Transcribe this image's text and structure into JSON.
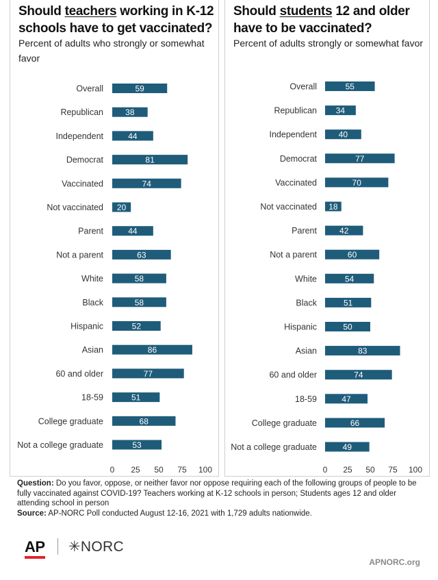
{
  "left": {
    "title_pre": "Should ",
    "title_u": "teachers",
    "title_post": " working in K-12",
    "title_line2": "schools have to get vaccinated?",
    "subtitle": "Percent of adults who strongly or somewhat favor"
  },
  "right": {
    "title_pre": "Should ",
    "title_u": "students",
    "title_post": " 12 and older",
    "title_line2": "have to be vaccinated?",
    "subtitle": "Percent of adults strongly or somewhat favor"
  },
  "footer": {
    "question_label": "Question:",
    "question_text": " Do you favor, oppose, or neither favor nor oppose requiring each of the following groups of people to be fully vaccinated against COVID-19? Teachers working at K-12 schools in person; Students ages 12 and older attending school in person",
    "source_label": "Source:",
    "source_text": " AP-NORC Poll conducted August 12-16, 2021 with 1,729 adults nationwide."
  },
  "logos": {
    "ap": "AP",
    "norc": "✳NORC",
    "site": "APNORC.org"
  },
  "colors": {
    "bar": "#1f5c7a",
    "bar_label": "#ffffff",
    "border": "#cfcfcf"
  },
  "chart_data": [
    {
      "type": "bar",
      "orientation": "horizontal",
      "categories": [
        "Overall",
        "Republican",
        "Independent",
        "Democrat",
        "Vaccinated",
        "Not vaccinated",
        "Parent",
        "Not a parent",
        "White",
        "Black",
        "Hispanic",
        "Asian",
        "60 and older",
        "18-59",
        "College graduate",
        "Not a college graduate"
      ],
      "values": [
        59,
        38,
        44,
        81,
        74,
        20,
        44,
        63,
        58,
        58,
        52,
        86,
        77,
        51,
        68,
        53
      ],
      "xlim": [
        0,
        100
      ],
      "xticks": [
        0,
        25,
        50,
        75,
        100
      ],
      "grid": false
    },
    {
      "type": "bar",
      "orientation": "horizontal",
      "categories": [
        "Overall",
        "Republican",
        "Independent",
        "Democrat",
        "Vaccinated",
        "Not vaccinated",
        "Parent",
        "Not a parent",
        "White",
        "Black",
        "Hispanic",
        "Asian",
        "60 and older",
        "18-59",
        "College graduate",
        "Not a college graduate"
      ],
      "values": [
        55,
        34,
        40,
        77,
        70,
        18,
        42,
        60,
        54,
        51,
        50,
        83,
        74,
        47,
        66,
        49
      ],
      "xlim": [
        0,
        100
      ],
      "xticks": [
        0,
        25,
        50,
        75,
        100
      ],
      "grid": false
    }
  ]
}
